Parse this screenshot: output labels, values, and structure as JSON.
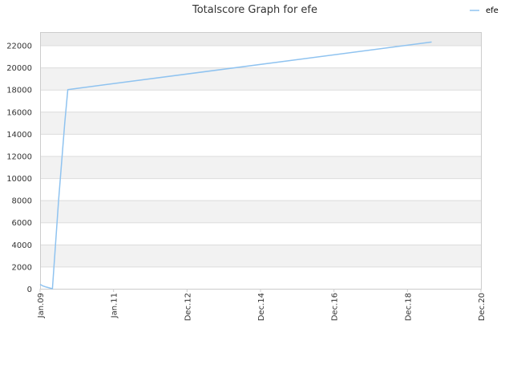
{
  "chart_data": {
    "type": "line",
    "title": "Totalscore Graph for efe",
    "xlabel": "",
    "ylabel": "",
    "x_ticks": [
      "Jan.09",
      "Jan.11",
      "Dec.12",
      "Dec.14",
      "Dec.16",
      "Dec.18",
      "Dec.20"
    ],
    "y_ticks": [
      0,
      2000,
      4000,
      6000,
      8000,
      10000,
      12000,
      14000,
      16000,
      18000,
      20000,
      22000
    ],
    "ylim": [
      0,
      23200
    ],
    "xlim": [
      "2009-01",
      "2020-12"
    ],
    "grid": "horizontal alternating bands",
    "legend_position": "top-right",
    "colors": {
      "series": "#8fc3f0",
      "band": "#f2f2f2",
      "top_band": "#ececec",
      "grid": "#dcdcdc",
      "axis": "#cccccc"
    },
    "series": [
      {
        "name": "efe",
        "points": [
          {
            "x": "2009-01",
            "y": 400
          },
          {
            "x": "2009-02",
            "y": 250
          },
          {
            "x": "2009-03",
            "y": 150
          },
          {
            "x": "2009-05",
            "y": 0
          },
          {
            "x": "2009-07",
            "y": 8000
          },
          {
            "x": "2009-09",
            "y": 15000
          },
          {
            "x": "2009-10",
            "y": 18000
          },
          {
            "x": "2019-08",
            "y": 22300
          }
        ]
      }
    ]
  }
}
